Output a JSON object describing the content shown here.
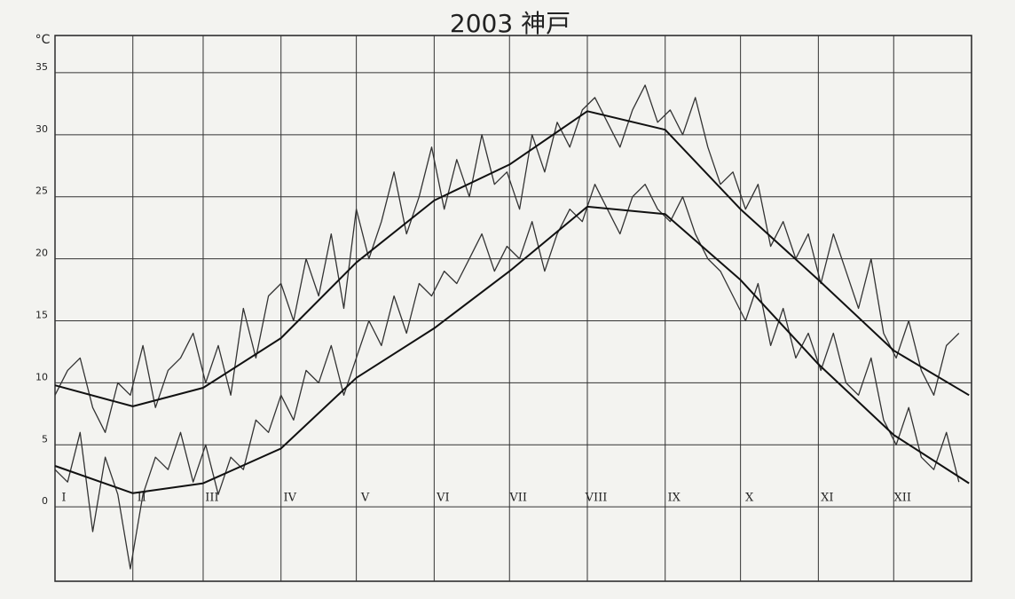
{
  "chart_data": {
    "type": "line",
    "title": "2003 神戸",
    "y_label": "°C",
    "xlim": [
      1,
      366
    ],
    "ylim": [
      -6,
      38
    ],
    "xticks": [
      {
        "value": 1,
        "label": "I"
      },
      {
        "value": 32,
        "label": "II"
      },
      {
        "value": 60,
        "label": "III"
      },
      {
        "value": 91,
        "label": "IV"
      },
      {
        "value": 121,
        "label": "V"
      },
      {
        "value": 152,
        "label": "VI"
      },
      {
        "value": 182,
        "label": "VII"
      },
      {
        "value": 213,
        "label": "VIII"
      },
      {
        "value": 244,
        "label": "IX"
      },
      {
        "value": 274,
        "label": "X"
      },
      {
        "value": 305,
        "label": "XI"
      },
      {
        "value": 335,
        "label": "XII"
      }
    ],
    "yticks": [
      0,
      5,
      10,
      15,
      20,
      25,
      30,
      35
    ],
    "grid": true,
    "series": [
      {
        "color": "#333333",
        "x": [
          1,
          6,
          11,
          16,
          21,
          26,
          31,
          36,
          41,
          46,
          51,
          56,
          61,
          66,
          71,
          76,
          81,
          86,
          91,
          96,
          101,
          106,
          111,
          116,
          121,
          126,
          131,
          136,
          141,
          146,
          151,
          156,
          161,
          166,
          171,
          176,
          181,
          186,
          191,
          196,
          201,
          206,
          211,
          216,
          221,
          226,
          231,
          236,
          241,
          246,
          251,
          256,
          261,
          266,
          271,
          276,
          281,
          286,
          291,
          296,
          301,
          306,
          311,
          316,
          321,
          326,
          331,
          336,
          341,
          346,
          351,
          356,
          361
        ],
        "values": [
          9,
          11,
          12,
          8,
          6,
          10,
          9,
          13,
          8,
          11,
          12,
          14,
          10,
          13,
          9,
          16,
          12,
          17,
          18,
          15,
          20,
          17,
          22,
          16,
          24,
          20,
          23,
          27,
          22,
          25,
          29,
          24,
          28,
          25,
          30,
          26,
          27,
          24,
          30,
          27,
          31,
          29,
          32,
          33,
          31,
          29,
          32,
          34,
          31,
          32,
          30,
          33,
          29,
          26,
          27,
          24,
          26,
          21,
          23,
          20,
          22,
          18,
          22,
          19,
          16,
          20,
          14,
          12,
          15,
          11,
          9,
          13,
          14
        ]
      },
      {
        "color": "#333333",
        "x": [
          1,
          6,
          11,
          16,
          21,
          26,
          31,
          36,
          41,
          46,
          51,
          56,
          61,
          66,
          71,
          76,
          81,
          86,
          91,
          96,
          101,
          106,
          111,
          116,
          121,
          126,
          131,
          136,
          141,
          146,
          151,
          156,
          161,
          166,
          171,
          176,
          181,
          186,
          191,
          196,
          201,
          206,
          211,
          216,
          221,
          226,
          231,
          236,
          241,
          246,
          251,
          256,
          261,
          266,
          271,
          276,
          281,
          286,
          291,
          296,
          301,
          306,
          311,
          316,
          321,
          326,
          331,
          336,
          341,
          346,
          351,
          356,
          361
        ],
        "values": [
          3,
          2,
          6,
          -2,
          4,
          1,
          -5,
          1,
          4,
          3,
          6,
          2,
          5,
          1,
          4,
          3,
          7,
          6,
          9,
          7,
          11,
          10,
          13,
          9,
          12,
          15,
          13,
          17,
          14,
          18,
          17,
          19,
          18,
          20,
          22,
          19,
          21,
          20,
          23,
          19,
          22,
          24,
          23,
          26,
          24,
          22,
          25,
          26,
          24,
          23,
          25,
          22,
          20,
          19,
          17,
          15,
          18,
          13,
          16,
          12,
          14,
          11,
          14,
          10,
          9,
          12,
          7,
          5,
          8,
          4,
          3,
          6,
          2
        ]
      },
      {
        "color": "#111111",
        "x": [
          1,
          32,
          60,
          91,
          121,
          152,
          182,
          213,
          244,
          274,
          305,
          335,
          365
        ],
        "values": [
          9.8,
          8.1,
          9.6,
          13.6,
          19.7,
          24.7,
          27.6,
          31.9,
          30.4,
          24,
          18.3,
          12.6,
          9
        ]
      },
      {
        "color": "#111111",
        "x": [
          1,
          32,
          60,
          91,
          121,
          152,
          182,
          213,
          244,
          274,
          305,
          335,
          365
        ],
        "values": [
          3.3,
          1.1,
          1.9,
          4.7,
          10.4,
          14.4,
          19,
          24.2,
          23.6,
          18.3,
          11.5,
          5.8,
          1.9
        ]
      }
    ]
  }
}
